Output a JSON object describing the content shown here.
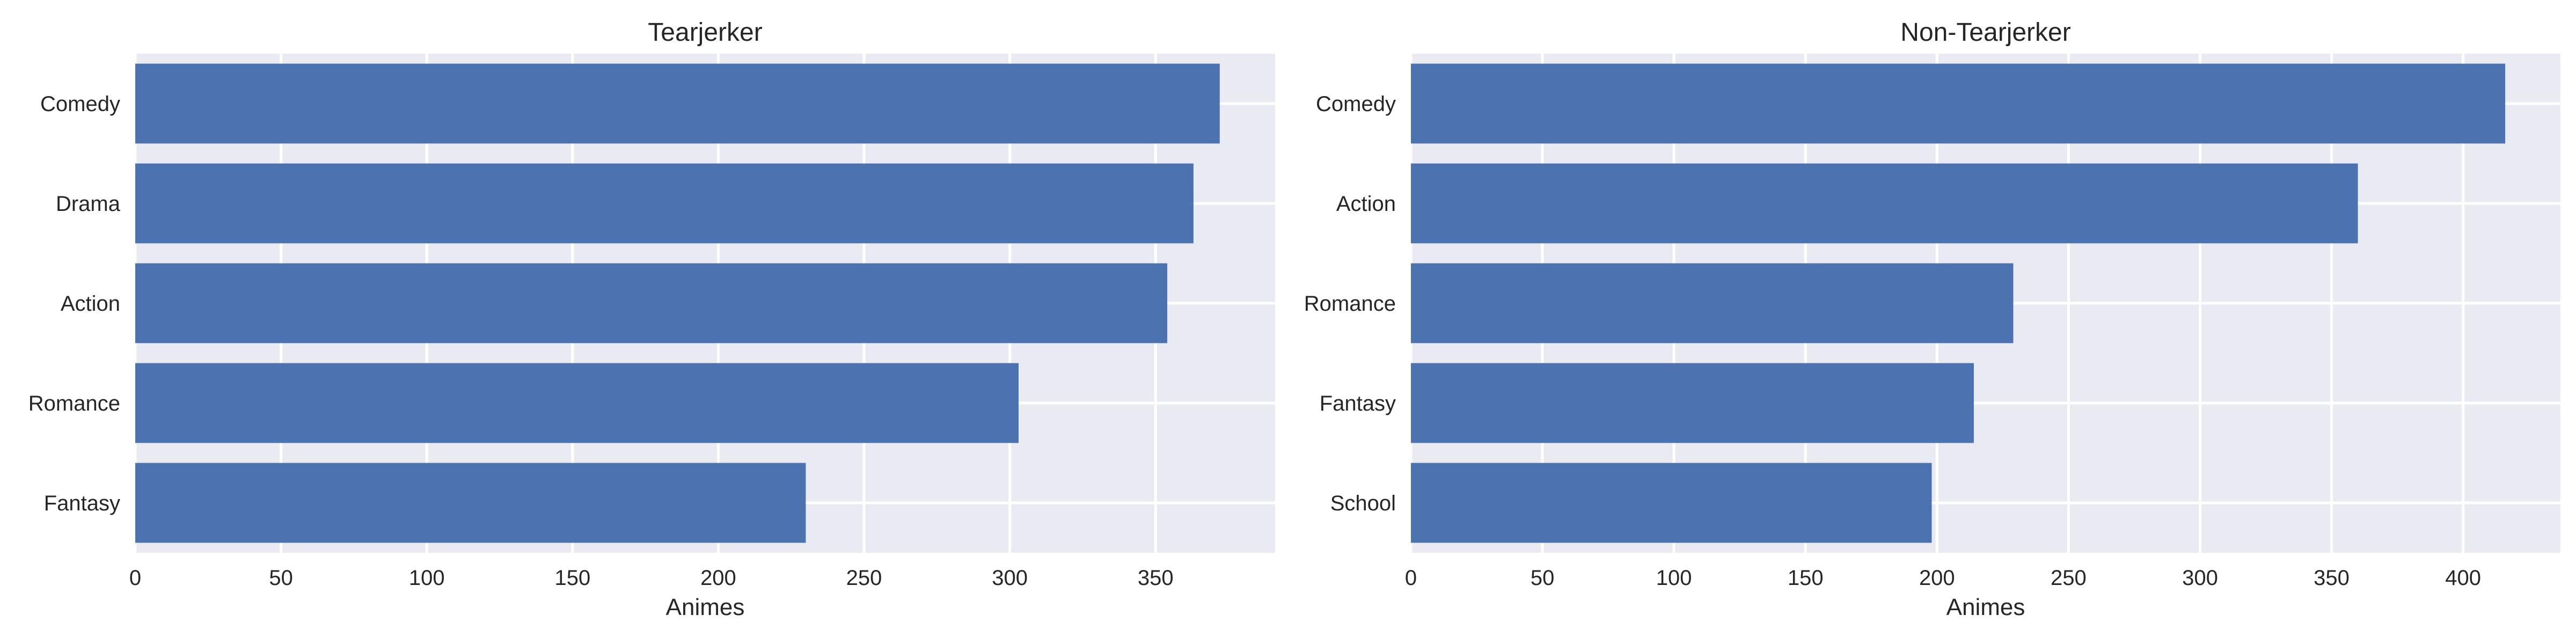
{
  "chart_data": [
    {
      "type": "bar",
      "orientation": "horizontal",
      "title": "Tearjerker",
      "xlabel": "Animes",
      "ylabel": "",
      "categories": [
        "Comedy",
        "Drama",
        "Action",
        "Romance",
        "Fantasy"
      ],
      "values": [
        372,
        363,
        354,
        303,
        230
      ],
      "xlim": [
        0,
        391
      ],
      "xticks": [
        0,
        50,
        100,
        150,
        200,
        250,
        300,
        350
      ],
      "grid": true,
      "bar_color": "#4c72b0",
      "background_color": "#eaeaf2"
    },
    {
      "type": "bar",
      "orientation": "horizontal",
      "title": "Non-Tearjerker",
      "xlabel": "Animes",
      "ylabel": "",
      "categories": [
        "Comedy",
        "Action",
        "Romance",
        "Fantasy",
        "School"
      ],
      "values": [
        416,
        360,
        229,
        214,
        198
      ],
      "xlim": [
        0,
        437
      ],
      "xticks": [
        0,
        50,
        100,
        150,
        200,
        250,
        300,
        350,
        400
      ],
      "grid": true,
      "bar_color": "#4c72b0",
      "background_color": "#eaeaf2"
    }
  ]
}
